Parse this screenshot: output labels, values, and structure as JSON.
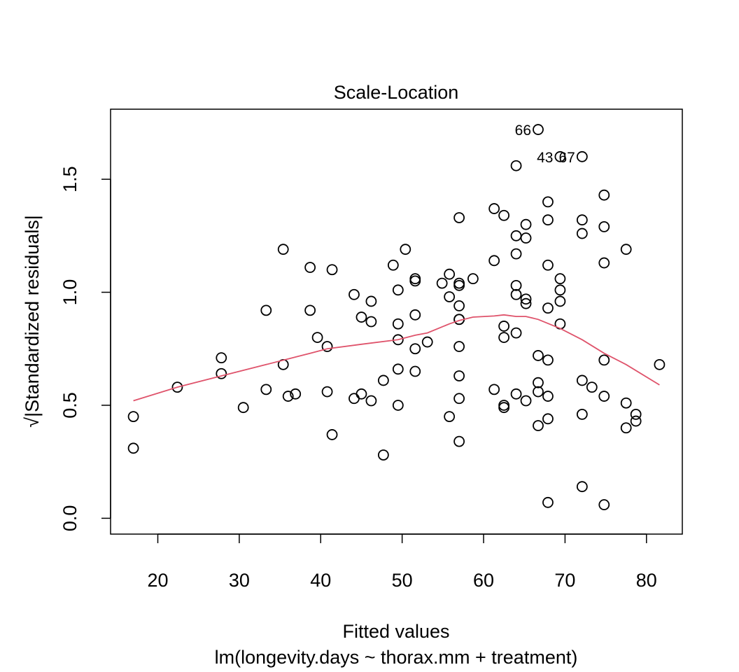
{
  "chart_data": {
    "type": "scatter",
    "title": "Scale-Location",
    "xlabel": "Fitted values",
    "sublabel": "lm(longevity.days ~ thorax.mm + treatment)",
    "ylabel": "√|Standardized residuals|",
    "xlim": [
      14.2,
      84.4
    ],
    "ylim": [
      -0.07,
      1.81
    ],
    "x_ticks": [
      {
        "value": 20,
        "label": "20"
      },
      {
        "value": 30,
        "label": "30"
      },
      {
        "value": 40,
        "label": "40"
      },
      {
        "value": 50,
        "label": "50"
      },
      {
        "value": 60,
        "label": "60"
      },
      {
        "value": 70,
        "label": "70"
      },
      {
        "value": 80,
        "label": "80"
      }
    ],
    "y_ticks": [
      {
        "value": 0.0,
        "label": "0.0"
      },
      {
        "value": 0.5,
        "label": "0.5"
      },
      {
        "value": 1.0,
        "label": "1.0"
      },
      {
        "value": 1.5,
        "label": "1.5"
      }
    ],
    "points": [
      [
        17.0,
        0.45
      ],
      [
        17.0,
        0.31
      ],
      [
        22.4,
        0.58
      ],
      [
        27.8,
        0.71
      ],
      [
        27.8,
        0.64
      ],
      [
        30.5,
        0.49
      ],
      [
        33.3,
        0.92
      ],
      [
        33.3,
        0.57
      ],
      [
        35.4,
        1.19
      ],
      [
        35.4,
        0.68
      ],
      [
        36.0,
        0.54
      ],
      [
        36.9,
        0.55
      ],
      [
        38.7,
        1.11
      ],
      [
        38.7,
        0.92
      ],
      [
        39.6,
        0.8
      ],
      [
        40.8,
        0.76
      ],
      [
        40.8,
        0.56
      ],
      [
        41.4,
        1.1
      ],
      [
        41.4,
        0.37
      ],
      [
        44.1,
        0.99
      ],
      [
        44.1,
        0.53
      ],
      [
        45.0,
        0.89
      ],
      [
        45.0,
        0.55
      ],
      [
        46.2,
        0.96
      ],
      [
        46.2,
        0.87
      ],
      [
        46.2,
        0.52
      ],
      [
        47.7,
        0.61
      ],
      [
        47.7,
        0.28
      ],
      [
        48.9,
        1.12
      ],
      [
        49.5,
        1.01
      ],
      [
        49.5,
        0.86
      ],
      [
        49.5,
        0.79
      ],
      [
        49.5,
        0.66
      ],
      [
        49.5,
        0.5
      ],
      [
        50.4,
        1.19
      ],
      [
        51.6,
        1.06
      ],
      [
        51.6,
        1.05
      ],
      [
        51.6,
        0.9
      ],
      [
        51.6,
        0.75
      ],
      [
        51.6,
        0.65
      ],
      [
        53.1,
        0.78
      ],
      [
        54.9,
        1.04
      ],
      [
        55.8,
        1.08
      ],
      [
        55.8,
        0.98
      ],
      [
        55.8,
        0.45
      ],
      [
        57.0,
        1.33
      ],
      [
        57.0,
        1.04
      ],
      [
        57.0,
        1.03
      ],
      [
        57.0,
        0.94
      ],
      [
        57.0,
        0.88
      ],
      [
        57.0,
        0.88
      ],
      [
        57.0,
        0.76
      ],
      [
        57.0,
        0.63
      ],
      [
        57.0,
        0.53
      ],
      [
        57.0,
        0.34
      ],
      [
        58.7,
        1.06
      ],
      [
        61.3,
        1.37
      ],
      [
        61.3,
        1.14
      ],
      [
        61.3,
        0.57
      ],
      [
        62.5,
        1.34
      ],
      [
        62.5,
        0.85
      ],
      [
        62.5,
        0.8
      ],
      [
        62.5,
        0.5
      ],
      [
        62.5,
        0.49
      ],
      [
        64.0,
        1.56
      ],
      [
        64.0,
        1.25
      ],
      [
        64.0,
        1.17
      ],
      [
        64.0,
        1.03
      ],
      [
        64.0,
        0.99
      ],
      [
        64.0,
        0.82
      ],
      [
        64.0,
        0.55
      ],
      [
        65.2,
        1.3
      ],
      [
        65.2,
        1.24
      ],
      [
        65.2,
        0.97
      ],
      [
        65.2,
        0.95
      ],
      [
        65.2,
        0.52
      ],
      [
        66.7,
        1.72
      ],
      [
        66.7,
        0.72
      ],
      [
        66.7,
        0.6
      ],
      [
        66.7,
        0.56
      ],
      [
        66.7,
        0.41
      ],
      [
        67.9,
        1.4
      ],
      [
        67.9,
        1.32
      ],
      [
        67.9,
        1.12
      ],
      [
        67.9,
        0.93
      ],
      [
        67.9,
        0.7
      ],
      [
        67.9,
        0.54
      ],
      [
        67.9,
        0.44
      ],
      [
        67.9,
        0.07
      ],
      [
        69.4,
        1.6
      ],
      [
        69.4,
        1.06
      ],
      [
        69.4,
        1.01
      ],
      [
        69.4,
        0.96
      ],
      [
        69.4,
        0.86
      ],
      [
        72.1,
        1.6
      ],
      [
        72.1,
        1.32
      ],
      [
        72.1,
        1.26
      ],
      [
        72.1,
        0.61
      ],
      [
        72.1,
        0.46
      ],
      [
        72.1,
        0.14
      ],
      [
        73.3,
        0.58
      ],
      [
        74.8,
        1.43
      ],
      [
        74.8,
        1.29
      ],
      [
        74.8,
        1.13
      ],
      [
        74.8,
        0.7
      ],
      [
        74.8,
        0.54
      ],
      [
        74.8,
        0.06
      ],
      [
        77.5,
        1.19
      ],
      [
        77.5,
        0.51
      ],
      [
        77.5,
        0.4
      ],
      [
        78.7,
        0.46
      ],
      [
        78.7,
        0.43
      ],
      [
        81.6,
        0.68
      ]
    ],
    "point_labels": [
      {
        "label": "66",
        "x": 66.7,
        "y": 1.72
      },
      {
        "label": "43",
        "x": 69.4,
        "y": 1.6
      },
      {
        "label": "67",
        "x": 72.1,
        "y": 1.6
      }
    ],
    "smoother": {
      "color": "#DF536B",
      "points": [
        [
          17.0,
          0.52
        ],
        [
          22.4,
          0.58
        ],
        [
          27.8,
          0.63
        ],
        [
          33.3,
          0.68
        ],
        [
          38.7,
          0.73
        ],
        [
          40.8,
          0.75
        ],
        [
          45.0,
          0.77
        ],
        [
          49.5,
          0.79
        ],
        [
          51.6,
          0.81
        ],
        [
          53.1,
          0.82
        ],
        [
          55.8,
          0.86
        ],
        [
          57.0,
          0.875
        ],
        [
          58.7,
          0.89
        ],
        [
          61.3,
          0.895
        ],
        [
          62.5,
          0.9
        ],
        [
          64.0,
          0.893
        ],
        [
          65.2,
          0.893
        ],
        [
          66.7,
          0.88
        ],
        [
          69.4,
          0.84
        ],
        [
          72.1,
          0.79
        ],
        [
          74.8,
          0.73
        ],
        [
          77.5,
          0.68
        ],
        [
          81.6,
          0.59
        ]
      ]
    }
  }
}
